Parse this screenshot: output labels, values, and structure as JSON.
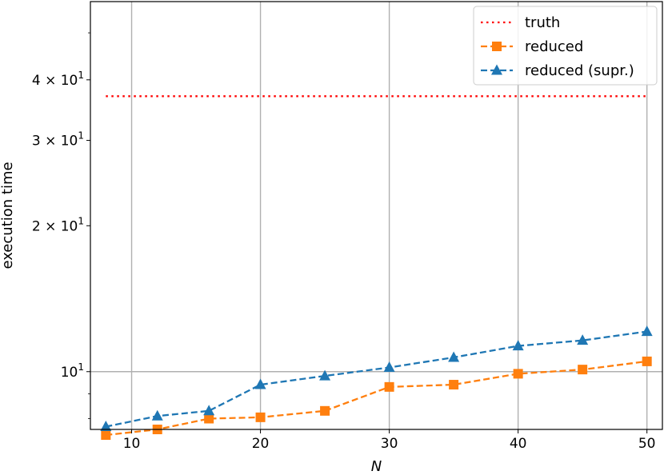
{
  "chart_data": {
    "type": "line",
    "xlabel": "N",
    "ylabel": "execution time",
    "yscale": "log",
    "xlim": [
      6.8,
      51.2
    ],
    "ylim": [
      7.6,
      58
    ],
    "grid": true,
    "legend_position": "top-right",
    "x_ticks": [
      {
        "value": 10,
        "label": "10"
      },
      {
        "value": 20,
        "label": "20"
      },
      {
        "value": 30,
        "label": "30"
      },
      {
        "value": 40,
        "label": "40"
      },
      {
        "value": 50,
        "label": "50"
      }
    ],
    "y_ticks": [
      {
        "value": 10,
        "base": "10",
        "exp": "1"
      },
      {
        "value": 20,
        "base": "2 × 10",
        "exp": "1"
      },
      {
        "value": 30,
        "base": "3 × 10",
        "exp": "1"
      },
      {
        "value": 40,
        "base": "4 × 10",
        "exp": "1"
      }
    ],
    "series": [
      {
        "name": "truth",
        "color": "#ff0000",
        "style": "dotted",
        "marker": "none",
        "x": [
          8,
          50
        ],
        "values": [
          37.0,
          37.0
        ]
      },
      {
        "name": "reduced",
        "color": "#ff7f0e",
        "style": "dashed",
        "marker": "square",
        "x": [
          8,
          12,
          16,
          20,
          25,
          30,
          35,
          40,
          45,
          50
        ],
        "values": [
          7.4,
          7.6,
          8.0,
          8.05,
          8.3,
          9.3,
          9.4,
          9.9,
          10.1,
          10.5
        ]
      },
      {
        "name": "reduced (supr.)",
        "color": "#1f77b4",
        "style": "dashed",
        "marker": "triangle",
        "x": [
          8,
          12,
          16,
          20,
          25,
          30,
          35,
          40,
          45,
          50
        ],
        "values": [
          7.7,
          8.1,
          8.3,
          9.4,
          9.8,
          10.2,
          10.7,
          11.3,
          11.6,
          12.1
        ]
      }
    ]
  }
}
